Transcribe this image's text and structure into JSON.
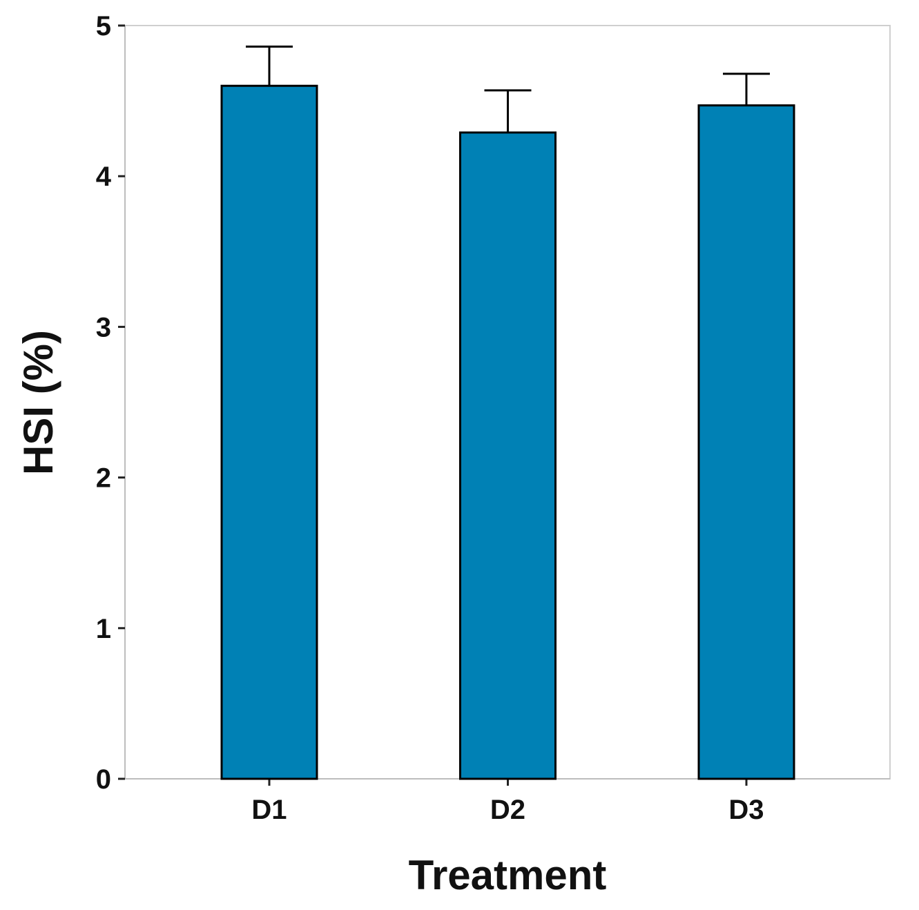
{
  "chart_data": {
    "type": "bar",
    "title": "",
    "xlabel": "Treatment",
    "ylabel": "HSI (%)",
    "categories": [
      "D1",
      "D2",
      "D3"
    ],
    "values": [
      4.6,
      4.29,
      4.47
    ],
    "errors": [
      0.26,
      0.28,
      0.21
    ],
    "ylim": [
      0,
      5
    ],
    "yticks": [
      "0",
      "1",
      "2",
      "3",
      "4",
      "5"
    ],
    "grid": false,
    "bar_color": "#0081B5",
    "edge_color": "#000000"
  }
}
